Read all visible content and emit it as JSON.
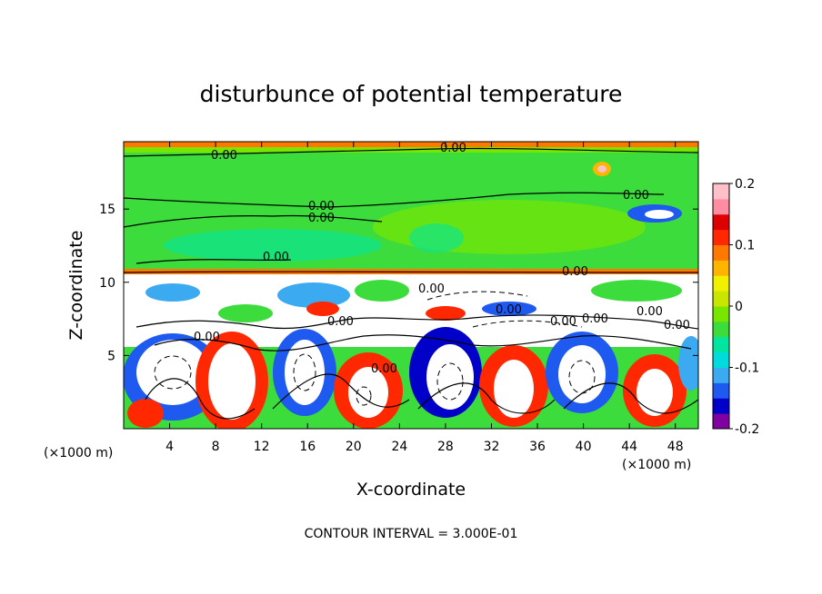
{
  "chart_data": {
    "type": "heatmap",
    "title": "disturbunce of potential temperature",
    "xlabel": "X-coordinate",
    "ylabel": "Z-coordinate",
    "x_unit_left": "(×1000 m)",
    "x_unit_right": "(×1000 m)",
    "x_ticks": [
      "4",
      "8",
      "12",
      "16",
      "20",
      "24",
      "28",
      "32",
      "36",
      "40",
      "44",
      "48"
    ],
    "y_ticks": [
      "5",
      "10",
      "15"
    ],
    "xlim": [
      0,
      50
    ],
    "ylim": [
      0,
      19.6
    ],
    "colorbar": {
      "ticks": [
        "0.2",
        "0.1",
        "0",
        "-0.1",
        "-0.2"
      ],
      "range": [
        -0.2,
        0.2
      ],
      "colors": [
        "#8000a0",
        "#0000c8",
        "#1e5af0",
        "#3caaf0",
        "#00dcdc",
        "#00e6a0",
        "#3cdc3c",
        "#78e600",
        "#c8e600",
        "#f0f000",
        "#ffb400",
        "#ff7800",
        "#ff2800",
        "#dc0000",
        "#ff8ca0",
        "#ffc0c8"
      ]
    },
    "contour_labels": [
      "0.00",
      "0.00",
      "0.00",
      "0.00",
      "0.00",
      "0.00",
      "0.00",
      "0.00",
      "0.00",
      "0.00",
      "0.00",
      "0.00",
      "0.00",
      "0.00",
      "0.00",
      "0.00"
    ],
    "footer": "CONTOUR INTERVAL = 3.000E-01"
  }
}
